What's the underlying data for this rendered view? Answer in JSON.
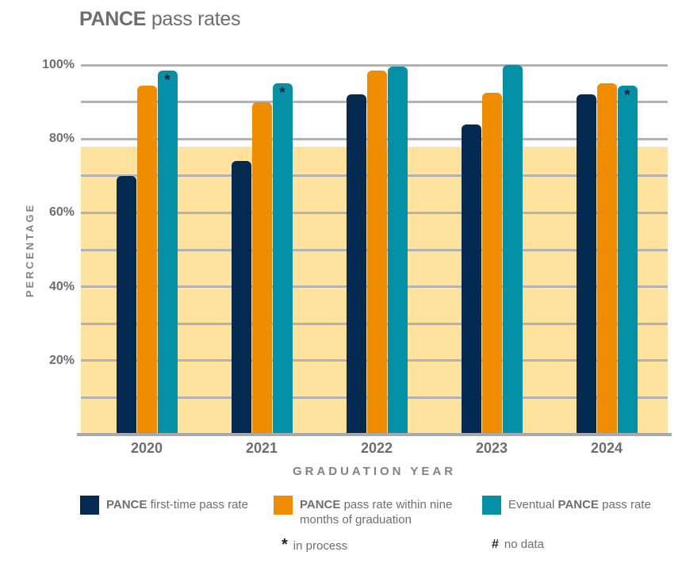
{
  "title": {
    "bold": "PANCE",
    "rest": " pass rates"
  },
  "colors": {
    "navy": "#052a52",
    "orange": "#f08c00",
    "teal": "#0690a8",
    "band": "#fee29e",
    "gridline": "#b2b2b2",
    "axis_line": "#a7a9ac",
    "tick_text": "#6d6e71",
    "axis_title_text": "#808285",
    "marker": "#1d2430"
  },
  "chart_data": {
    "type": "bar",
    "title": "PANCE pass rates",
    "categories": [
      "2020",
      "2021",
      "2022",
      "2023",
      "2024"
    ],
    "series": [
      {
        "key": "first-time",
        "name": "PANCE first-time pass rate",
        "color_key": "navy",
        "values": [
          70,
          74,
          92,
          84,
          92
        ],
        "markers": [
          null,
          null,
          null,
          null,
          null
        ]
      },
      {
        "key": "nine-months",
        "name": "PANCE pass rate within nine months of graduation",
        "color_key": "orange",
        "values": [
          94.5,
          90,
          98.5,
          92.5,
          95
        ],
        "markers": [
          null,
          null,
          null,
          null,
          null
        ]
      },
      {
        "key": "eventual",
        "name": "Eventual PANCE pass rate",
        "color_key": "teal",
        "values": [
          98.5,
          95,
          99.5,
          99.9,
          94.5
        ],
        "markers": [
          "*",
          "*",
          null,
          null,
          "*"
        ]
      }
    ],
    "xlabel": "GRADUATION YEAR",
    "ylabel": "PERCENTAGE",
    "ylim": [
      0,
      100
    ],
    "gridline_step": 10,
    "yticks": [
      20,
      40,
      60,
      80,
      100
    ],
    "ytick_labels": [
      "20%",
      "40%",
      "60%",
      "80%",
      "100%"
    ],
    "band": {
      "from": 0,
      "to": 78
    },
    "grid": true,
    "legend_position": "bottom"
  },
  "legend": {
    "items": [
      {
        "swatch_color_key": "navy",
        "parts": [
          {
            "text": "PANCE",
            "bold": true
          },
          {
            "text": " first-time pass rate",
            "bold": false
          }
        ]
      },
      {
        "swatch_color_key": "orange",
        "parts": [
          {
            "text": "PANCE",
            "bold": true
          },
          {
            "text": " pass rate within nine months of graduation",
            "bold": false
          }
        ]
      },
      {
        "swatch_color_key": "teal",
        "parts": [
          {
            "text": "Eventual ",
            "bold": false
          },
          {
            "text": "PANCE",
            "bold": true
          },
          {
            "text": " pass rate",
            "bold": false
          }
        ]
      }
    ],
    "notes": [
      {
        "symbol": "*",
        "label": "in process"
      },
      {
        "symbol": "#",
        "label": "no data"
      }
    ]
  }
}
